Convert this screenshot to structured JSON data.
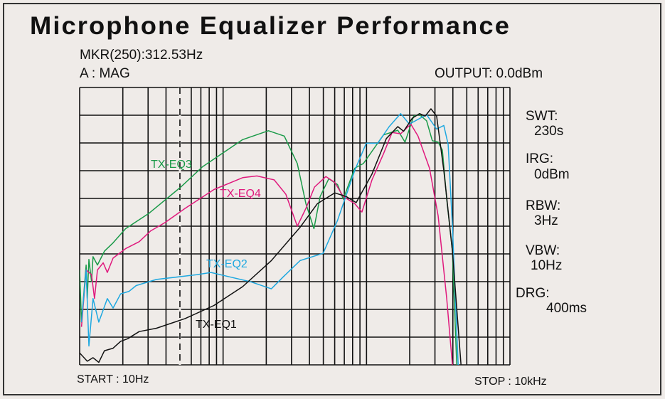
{
  "chart_data": {
    "type": "line",
    "title": "Microphone Equalizer Performance",
    "x_scale": "log",
    "xlim": [
      10,
      10000
    ],
    "ylim": [
      0,
      10
    ],
    "grid": true,
    "marker_frequency": 50,
    "colors": {
      "TX-EQ1": "#111111",
      "TX-EQ2": "#1ea8e0",
      "TX-EQ3": "#1a9a48",
      "TX-EQ4": "#e0197d"
    },
    "series": [
      {
        "name": "TX-EQ3",
        "x": [
          10,
          10.3,
          11.1,
          11.3,
          11.6,
          12.1,
          12.4,
          13.3,
          14.9,
          17.1,
          20.9,
          30.5,
          50.7,
          71.8,
          137,
          207,
          267,
          329,
          378,
          430,
          475,
          546,
          628,
          688,
          828,
          951,
          1313,
          1652,
          1857,
          2133,
          2339,
          2624,
          2877,
          3155,
          3381,
          3622,
          3972,
          4256
        ],
        "y": [
          3.42,
          1.54,
          3.6,
          2.4,
          3.8,
          3.0,
          3.9,
          3.6,
          4.1,
          4.4,
          4.91,
          5.47,
          6.41,
          7.14,
          8.12,
          8.44,
          8.25,
          7.26,
          5.81,
          4.91,
          6.07,
          6.71,
          6.5,
          5.98,
          7.09,
          7.26,
          8.29,
          8.46,
          8.03,
          8.97,
          9.02,
          8.8,
          8.08,
          8.03,
          7.74,
          5.98,
          4.1,
          0
        ]
      },
      {
        "name": "TX-EQ4",
        "x": [
          10.3,
          11.1,
          12.1,
          12.7,
          13.3,
          14.6,
          15.6,
          17.1,
          20.9,
          26,
          31.3,
          39.4,
          54.3,
          86.3,
          137,
          172,
          227,
          274,
          329,
          378,
          434,
          521,
          600,
          688,
          828,
          929,
          1091,
          1313,
          1507,
          1730,
          2036,
          2286,
          2748,
          3155,
          3622,
          3972
        ],
        "y": [
          1.37,
          3.42,
          3.25,
          2.39,
          3.42,
          3.68,
          3.33,
          3.85,
          4.19,
          4.44,
          4.83,
          5.13,
          5.64,
          6.32,
          6.75,
          6.81,
          6.67,
          6.15,
          5.0,
          5.64,
          6.41,
          6.79,
          6.58,
          6.07,
          5.81,
          5.51,
          6.67,
          7.61,
          8.38,
          8.33,
          8.68,
          8.25,
          7.09,
          5.38,
          2.39,
          0
        ]
      },
      {
        "name": "TX-EQ2",
        "x": [
          10.3,
          11.1,
          11.6,
          12.4,
          13.6,
          15.6,
          17.1,
          19.3,
          22.1,
          24.8,
          34.3,
          65.4,
          82.4,
          114,
          157,
          217,
          261,
          344,
          498,
          628,
          828,
          995,
          1197,
          1439,
          1730,
          1990,
          2624,
          3083,
          3459,
          3707,
          3972,
          4355
        ],
        "y": [
          1.54,
          3.42,
          0.68,
          2.39,
          1.54,
          2.39,
          2.05,
          2.56,
          2.65,
          2.86,
          3.08,
          3.25,
          3.33,
          3.16,
          2.99,
          2.74,
          3.16,
          3.76,
          4.02,
          5.21,
          7.01,
          7.99,
          7.99,
          8.59,
          9.06,
          8.68,
          9.02,
          8.5,
          8.63,
          7.95,
          5.0,
          0
        ]
      },
      {
        "name": "TX-EQ1",
        "x": [
          10,
          11.3,
          12.4,
          13.6,
          14.9,
          17.1,
          19.3,
          21.6,
          26,
          34.3,
          54.3,
          86.3,
          137,
          217,
          344,
          454,
          600,
          721,
          847,
          1091,
          1374,
          1652,
          1815,
          2083,
          2339,
          2564,
          2812,
          3083,
          3459,
          3972,
          4560
        ],
        "y": [
          0.43,
          0.13,
          0.26,
          0.09,
          0.51,
          0.6,
          0.85,
          0.94,
          1.2,
          1.32,
          1.67,
          2.14,
          2.82,
          3.76,
          4.96,
          5.81,
          6.2,
          6.07,
          5.85,
          6.88,
          8.16,
          8.59,
          8.42,
          8.89,
          9.06,
          8.97,
          9.23,
          8.97,
          7.01,
          4.1,
          0
        ]
      }
    ]
  },
  "header": {
    "title": "Microphone Equalizer Performance",
    "marker": "MKR(250):312.53Hz",
    "trace": "A : MAG",
    "output": "OUTPUT:  0.0dBm"
  },
  "trace_labels": {
    "eq1": "TX-EQ1",
    "eq2": "TX-EQ2",
    "eq3": "TX-EQ3",
    "eq4": "TX-EQ4"
  },
  "settings": [
    {
      "label": "SWT:",
      "value": "230s"
    },
    {
      "label": "IRG:",
      "value": "0dBm"
    },
    {
      "label": "RBW:",
      "value": "3Hz"
    },
    {
      "label": "VBW:",
      "value": "10Hz"
    },
    {
      "label": "DRG:",
      "value": "400ms"
    }
  ],
  "footer": {
    "start": "START : 10Hz",
    "stop": "STOP : 10kHz"
  }
}
